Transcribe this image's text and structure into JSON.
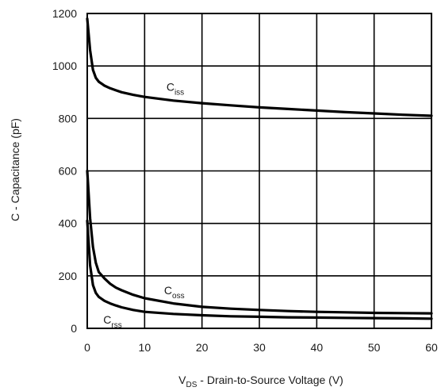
{
  "chart_data": {
    "type": "line",
    "title": "",
    "xlabel_main": "V",
    "xlabel_sub": "DS",
    "xlabel_rest": " - Drain-to-Source Voltage (V)",
    "ylabel": "C - Capacitance (pF)",
    "xlim": [
      0,
      60
    ],
    "ylim": [
      0,
      1200
    ],
    "xticks": [
      "0",
      "10",
      "20",
      "30",
      "40",
      "50",
      "60"
    ],
    "yticks": [
      "0",
      "200",
      "400",
      "600",
      "800",
      "1000",
      "1200"
    ],
    "grid": true,
    "series": [
      {
        "name": "C",
        "name_sub": "iss",
        "x": [
          0,
          0.5,
          1,
          1.5,
          2,
          3,
          4,
          5,
          6,
          8,
          10,
          15,
          20,
          25,
          30,
          35,
          40,
          45,
          50,
          55,
          60
        ],
        "y": [
          1180,
          1060,
          985,
          955,
          940,
          925,
          915,
          907,
          900,
          890,
          882,
          868,
          858,
          850,
          842,
          836,
          830,
          824,
          819,
          814,
          810
        ]
      },
      {
        "name": "C",
        "name_sub": "oss",
        "x": [
          0,
          0.5,
          1,
          1.5,
          2,
          3,
          4,
          5,
          6,
          8,
          10,
          15,
          20,
          25,
          30,
          35,
          40,
          45,
          50,
          55,
          60
        ],
        "y": [
          600,
          420,
          310,
          250,
          215,
          190,
          170,
          155,
          145,
          128,
          115,
          95,
          82,
          75,
          70,
          66,
          63,
          61,
          59,
          58,
          57
        ]
      },
      {
        "name": "C",
        "name_sub": "rss",
        "x": [
          0,
          0.5,
          1,
          1.5,
          2,
          3,
          4,
          5,
          6,
          8,
          10,
          15,
          20,
          25,
          30,
          35,
          40,
          45,
          50,
          55,
          60
        ],
        "y": [
          410,
          240,
          165,
          135,
          120,
          105,
          95,
          87,
          80,
          70,
          63,
          55,
          50,
          46,
          44,
          42,
          41,
          40,
          39,
          38,
          37
        ]
      }
    ]
  }
}
